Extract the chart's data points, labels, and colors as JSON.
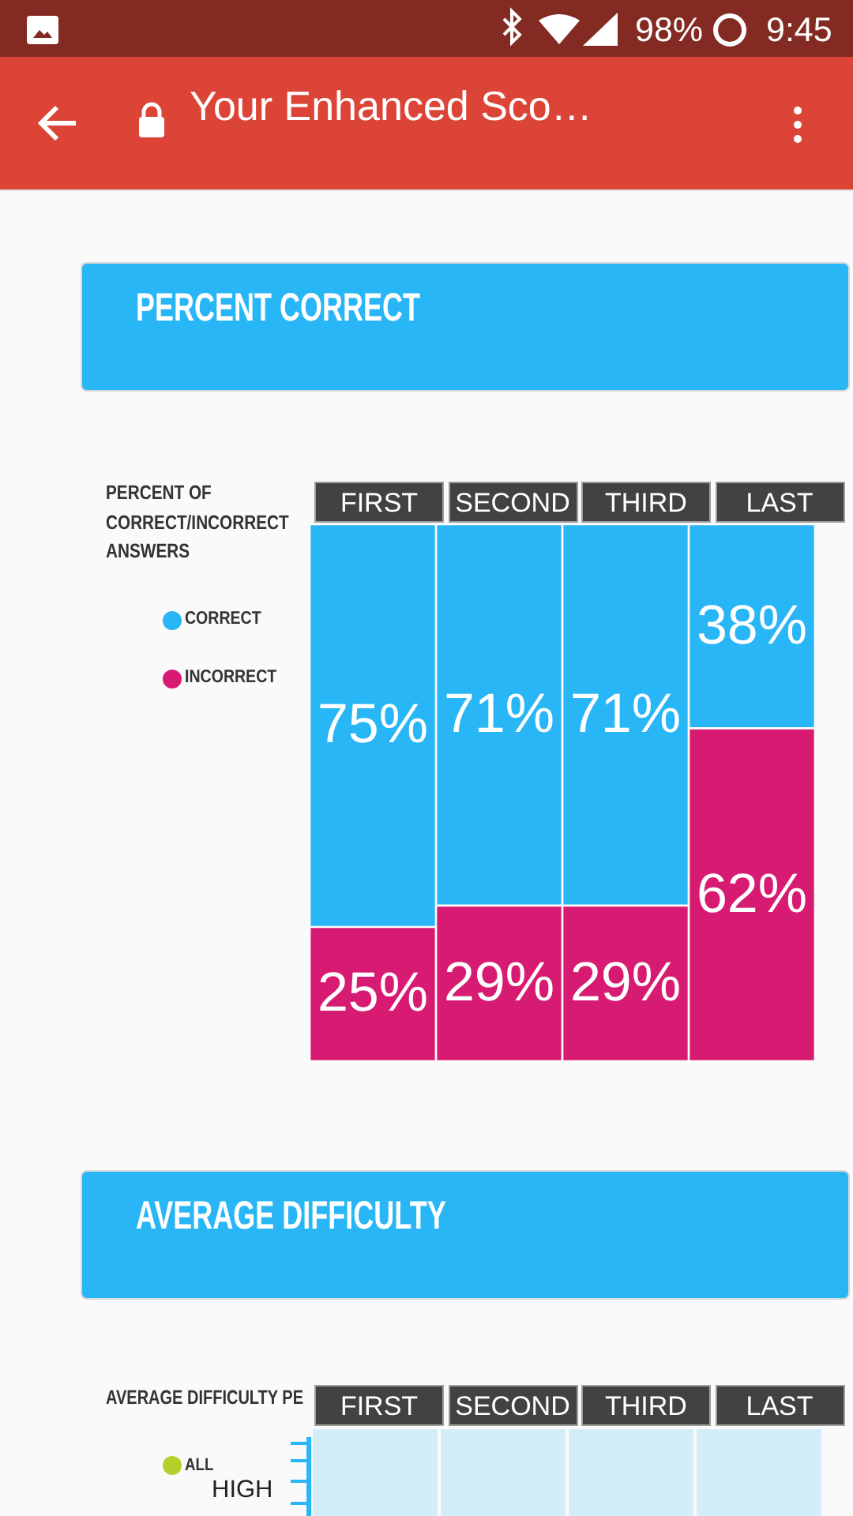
{
  "chart_data": [
    {
      "type": "bar",
      "title": "PERCENT CORRECT",
      "ylabel": "PERCENT OF CORRECT/INCORRECT ANSWERS",
      "categories": [
        "FIRST",
        "SECOND",
        "THIRD",
        "LAST"
      ],
      "stacked": true,
      "series": [
        {
          "name": "INCORRECT",
          "color": "#d81b72",
          "values": [
            25,
            29,
            29,
            62
          ],
          "value_labels": [
            "25%",
            "29%",
            "29%",
            "62%"
          ]
        },
        {
          "name": "CORRECT",
          "color": "#29b6f6",
          "values": [
            75,
            71,
            71,
            38
          ],
          "value_labels": [
            "75%",
            "71%",
            "71%",
            "38%"
          ]
        }
      ],
      "legend": "left",
      "tick_labels": "x",
      "annotations": [
        "98%",
        "9:45",
        "Your Enhanced Sco…"
      ]
    },
    {
      "type": "other",
      "title": "AVERAGE DIFFICULTY",
      "ylabel": "AVERAGE DIFFICULTY PE",
      "categories": [
        "FIRST",
        "SECOND",
        "THIRD",
        "LAST"
      ],
      "series": [
        {
          "name": "ALL",
          "color": "#b6cf2a",
          "values": [
            null,
            null,
            null,
            null
          ]
        }
      ],
      "legend": "left",
      "annotations": [
        "HIGH"
      ]
    }
  ]
}
